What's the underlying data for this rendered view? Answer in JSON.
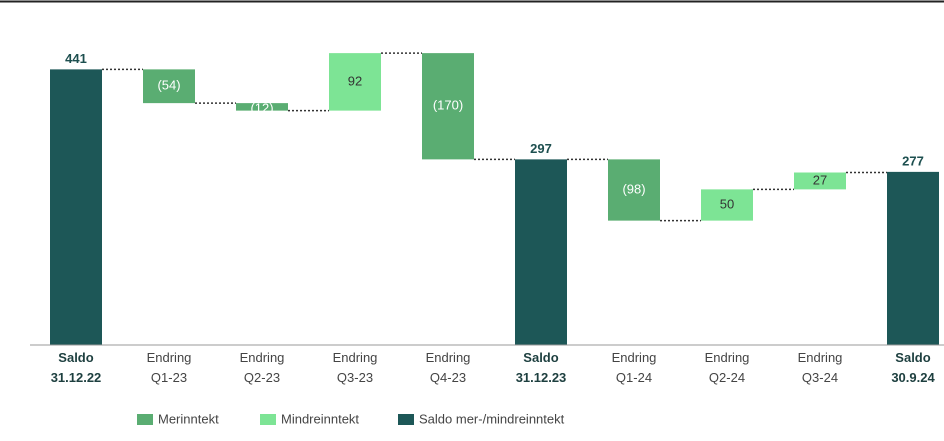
{
  "chart_data": {
    "type": "waterfall",
    "categories": [
      "Saldo 31.12.22",
      "Endring Q1-23",
      "Endring Q2-23",
      "Endring Q3-23",
      "Endring Q4-23",
      "Saldo 31.12.23",
      "Endring Q1-24",
      "Endring Q2-24",
      "Endring Q3-24",
      "Saldo 30.9.24"
    ],
    "series": [
      {
        "name": "Merinntekt",
        "color": "#5aad72",
        "values": [
          null,
          -54,
          -12,
          null,
          -170,
          null,
          -98,
          null,
          null,
          null
        ],
        "value_labels": [
          null,
          "(54)",
          "(12)",
          null,
          "(170)",
          null,
          "(98)",
          null,
          null,
          null
        ]
      },
      {
        "name": "Mindreinntekt",
        "color": "#7de495",
        "values": [
          null,
          null,
          null,
          92,
          null,
          null,
          null,
          50,
          27,
          null
        ]
      },
      {
        "name": "Saldo mer-/mindreinntekt",
        "color": "#1d5757",
        "values": [
          441,
          null,
          null,
          null,
          null,
          297,
          null,
          null,
          null,
          277
        ]
      }
    ],
    "ylim": [
      0,
      480
    ],
    "legend": "bottom"
  }
}
